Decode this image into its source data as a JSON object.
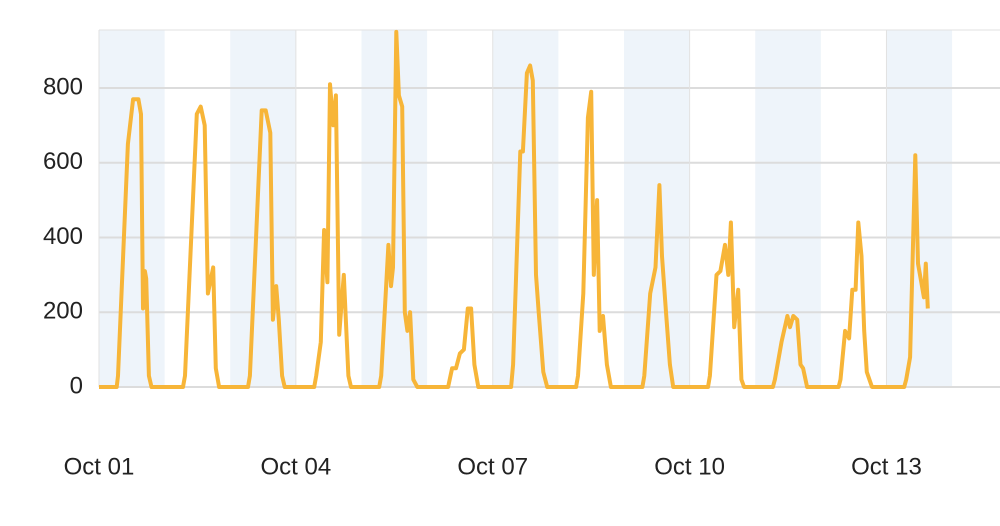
{
  "chart_data": {
    "type": "line",
    "x": [
      0,
      0.27,
      0.29,
      0.44,
      0.52,
      0.6,
      0.64,
      0.67,
      0.7,
      0.72,
      0.76,
      0.8,
      1.28,
      1.31,
      1.49,
      1.55,
      1.61,
      1.66,
      1.74,
      1.78,
      1.83,
      2.27,
      2.3,
      2.48,
      2.54,
      2.61,
      2.65,
      2.7,
      2.74,
      2.79,
      2.83,
      3.28,
      3.31,
      3.38,
      3.43,
      3.48,
      3.52,
      3.57,
      3.61,
      3.66,
      3.73,
      3.8,
      3.84,
      4.27,
      4.3,
      4.41,
      4.45,
      4.48,
      4.53,
      4.57,
      4.62,
      4.66,
      4.7,
      4.74,
      4.79,
      4.85,
      5.32,
      5.38,
      5.44,
      5.5,
      5.56,
      5.62,
      5.67,
      5.72,
      5.78,
      6.28,
      6.31,
      6.42,
      6.46,
      6.52,
      6.57,
      6.61,
      6.66,
      6.7,
      6.77,
      6.83,
      7.27,
      7.3,
      7.38,
      7.45,
      7.5,
      7.54,
      7.59,
      7.63,
      7.68,
      7.74,
      7.8,
      8.28,
      8.31,
      8.4,
      8.48,
      8.54,
      8.58,
      8.64,
      8.7,
      8.75,
      9.28,
      9.31,
      9.41,
      9.47,
      9.54,
      9.59,
      9.63,
      9.68,
      9.74,
      9.79,
      9.83,
      10.27,
      10.3,
      10.4,
      10.49,
      10.53,
      10.58,
      10.64,
      10.69,
      10.73,
      10.79,
      11.27,
      11.3,
      11.37,
      11.43,
      11.48,
      11.53,
      11.57,
      11.62,
      11.66,
      11.7,
      11.78,
      12.27,
      12.3,
      12.36,
      12.44,
      12.48,
      12.53,
      12.57,
      12.6,
      12.63
    ],
    "values": [
      0,
      0,
      30,
      650,
      770,
      770,
      730,
      210,
      310,
      290,
      30,
      0,
      0,
      30,
      730,
      750,
      700,
      250,
      320,
      50,
      0,
      0,
      30,
      740,
      740,
      680,
      180,
      270,
      180,
      30,
      0,
      0,
      30,
      120,
      420,
      280,
      810,
      700,
      780,
      140,
      300,
      30,
      0,
      0,
      30,
      380,
      270,
      320,
      950,
      780,
      750,
      200,
      150,
      200,
      20,
      0,
      0,
      50,
      50,
      90,
      100,
      210,
      210,
      60,
      0,
      0,
      60,
      630,
      630,
      840,
      860,
      820,
      300,
      200,
      40,
      0,
      0,
      30,
      250,
      720,
      790,
      300,
      500,
      150,
      190,
      60,
      0,
      0,
      30,
      250,
      320,
      540,
      350,
      200,
      60,
      0,
      0,
      30,
      300,
      310,
      380,
      300,
      440,
      160,
      260,
      20,
      0,
      0,
      20,
      120,
      190,
      160,
      190,
      180,
      60,
      50,
      0,
      0,
      20,
      150,
      130,
      260,
      260,
      440,
      350,
      150,
      40,
      0,
      0,
      20,
      80,
      620,
      330,
      280,
      240,
      330,
      210
    ],
    "color": "#f7b538",
    "xlim": [
      0,
      13.73
    ],
    "xticks": [
      {
        "value": 0,
        "label": "Oct 01"
      },
      {
        "value": 3,
        "label": "Oct 04"
      },
      {
        "value": 6,
        "label": "Oct 07"
      },
      {
        "value": 9,
        "label": "Oct 10"
      },
      {
        "value": 12,
        "label": "Oct 13"
      }
    ],
    "ylim": [
      0,
      955
    ],
    "yticks": [
      0,
      200,
      400,
      600,
      800
    ],
    "grid": true
  }
}
